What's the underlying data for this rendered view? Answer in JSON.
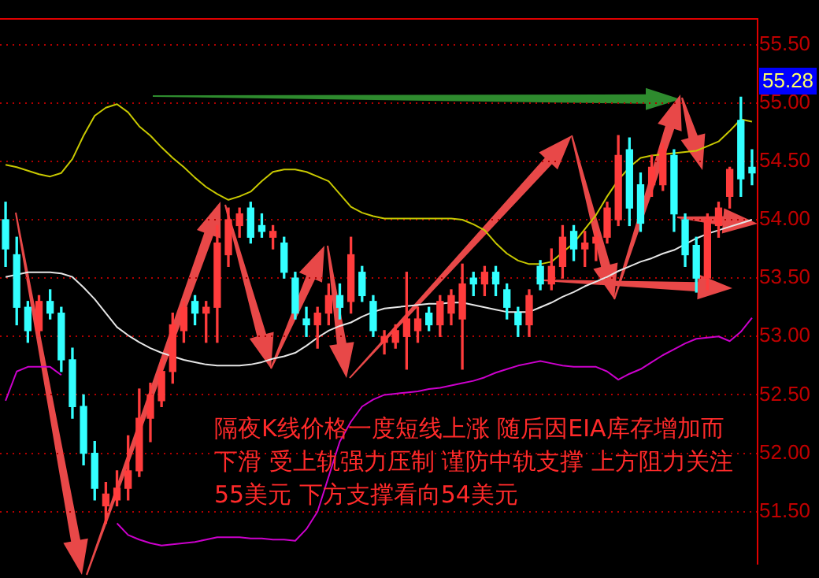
{
  "chart_data": {
    "type": "candlestick",
    "annotations": [
      "55.28",
      "隔夜K线价格一度短线上涨 随后因EIA库存增加而下滑 受上轨强力压制 谨防中轨支撑 上方阻力关注55美元 下方支撑看向54美元"
    ],
    "categories": [
      null,
      null,
      null,
      null,
      null,
      null,
      null,
      null,
      null,
      null,
      null,
      null,
      null,
      null,
      null,
      null,
      null,
      null,
      null,
      null,
      null,
      null,
      null,
      null,
      null,
      null,
      null,
      null,
      null,
      null,
      null,
      null,
      null,
      null,
      null,
      null,
      null,
      null,
      null,
      null,
      null,
      null,
      null,
      null,
      null,
      null,
      null,
      null,
      null,
      null,
      null,
      null,
      null,
      null,
      null,
      null,
      null,
      null,
      null,
      null,
      null,
      null,
      null,
      null,
      null,
      null,
      null,
      null
    ],
    "ohlc": [
      [
        54.0,
        54.15,
        53.6,
        53.75
      ],
      [
        53.7,
        53.85,
        53.1,
        53.25
      ],
      [
        53.25,
        53.3,
        52.95,
        53.05
      ],
      [
        53.05,
        53.35,
        53.0,
        53.3
      ],
      [
        53.3,
        53.4,
        53.15,
        53.2
      ],
      [
        53.2,
        53.25,
        52.7,
        52.8
      ],
      [
        52.8,
        52.9,
        52.3,
        52.4
      ],
      [
        52.4,
        52.5,
        51.9,
        52.0
      ],
      [
        52.0,
        52.1,
        51.6,
        51.7
      ],
      [
        51.55,
        51.75,
        51.4,
        51.65
      ],
      [
        51.6,
        51.85,
        51.55,
        51.7
      ],
      [
        51.7,
        52.15,
        51.6,
        51.85
      ],
      [
        51.85,
        52.55,
        51.8,
        52.3
      ],
      [
        52.3,
        52.6,
        52.1,
        52.5
      ],
      [
        52.45,
        52.8,
        52.4,
        52.7
      ],
      [
        52.7,
        53.2,
        52.6,
        53.1
      ],
      [
        53.05,
        53.3,
        52.95,
        53.25
      ],
      [
        53.3,
        53.35,
        53.1,
        53.2
      ],
      [
        53.2,
        53.3,
        52.95,
        53.25
      ],
      [
        53.25,
        53.95,
        52.95,
        53.8
      ],
      [
        53.7,
        54.1,
        53.6,
        54.0
      ],
      [
        53.95,
        54.1,
        53.85,
        54.05
      ],
      [
        54.1,
        54.15,
        53.8,
        53.85
      ],
      [
        53.95,
        54.05,
        53.85,
        53.9
      ],
      [
        53.85,
        53.95,
        53.75,
        53.9
      ],
      [
        53.8,
        53.85,
        53.5,
        53.55
      ],
      [
        53.5,
        53.55,
        53.15,
        53.2
      ],
      [
        53.15,
        53.25,
        53.0,
        53.1
      ],
      [
        53.1,
        53.25,
        52.9,
        53.2
      ],
      [
        53.2,
        53.45,
        53.1,
        53.35
      ],
      [
        53.35,
        53.45,
        53.15,
        53.25
      ],
      [
        53.3,
        53.85,
        53.2,
        53.7
      ],
      [
        53.55,
        53.6,
        53.3,
        53.35
      ],
      [
        53.3,
        53.35,
        53.0,
        53.05
      ],
      [
        52.95,
        53.05,
        52.85,
        53.0
      ],
      [
        52.95,
        53.1,
        52.9,
        53.05
      ],
      [
        53.0,
        53.55,
        52.72,
        53.15
      ],
      [
        53.05,
        53.25,
        52.95,
        53.15
      ],
      [
        53.2,
        53.25,
        53.05,
        53.1
      ],
      [
        53.1,
        53.35,
        53.0,
        53.3
      ],
      [
        53.2,
        53.4,
        53.1,
        53.35
      ],
      [
        53.15,
        53.62,
        52.72,
        53.45
      ],
      [
        53.5,
        53.55,
        53.35,
        53.45
      ],
      [
        53.45,
        53.6,
        53.35,
        53.55
      ],
      [
        53.55,
        53.6,
        53.35,
        53.45
      ],
      [
        53.4,
        53.45,
        53.15,
        53.25
      ],
      [
        53.2,
        53.25,
        53.0,
        53.1
      ],
      [
        53.1,
        53.4,
        53.0,
        53.35
      ],
      [
        53.6,
        53.65,
        53.4,
        53.45
      ],
      [
        53.45,
        53.75,
        53.4,
        53.6
      ],
      [
        53.6,
        53.95,
        53.5,
        53.85
      ],
      [
        53.9,
        53.95,
        53.65,
        53.75
      ],
      [
        53.75,
        53.9,
        53.6,
        53.8
      ],
      [
        53.8,
        53.9,
        53.65,
        53.85
      ],
      [
        53.85,
        54.15,
        53.8,
        54.1
      ],
      [
        54.0,
        54.72,
        53.95,
        54.55
      ],
      [
        54.6,
        54.7,
        53.95,
        54.1
      ],
      [
        54.3,
        54.4,
        53.9,
        53.97
      ],
      [
        54.3,
        54.55,
        54.2,
        54.45
      ],
      [
        54.3,
        54.65,
        54.25,
        54.6
      ],
      [
        54.55,
        54.6,
        53.9,
        54.05
      ],
      [
        54.0,
        54.05,
        53.6,
        53.7
      ],
      [
        53.78,
        53.85,
        53.38,
        53.5
      ],
      [
        53.5,
        54.05,
        53.4,
        54.0
      ],
      [
        53.95,
        54.15,
        53.85,
        54.1
      ],
      [
        54.2,
        54.45,
        54.1,
        54.43
      ],
      [
        54.85,
        55.05,
        54.2,
        54.35
      ],
      [
        54.45,
        54.6,
        54.3,
        54.4
      ]
    ],
    "series": [
      {
        "type": "line",
        "color": "#c8c800",
        "values": [
          54.47,
          54.45,
          54.42,
          54.39,
          54.37,
          54.4,
          54.52,
          54.72,
          54.89,
          54.96,
          54.99,
          54.92,
          54.8,
          54.72,
          54.62,
          54.53,
          54.45,
          54.36,
          54.28,
          54.22,
          54.17,
          54.2,
          54.24,
          54.33,
          54.41,
          54.43,
          54.43,
          54.41,
          54.37,
          54.33,
          54.22,
          54.11,
          54.06,
          54.03,
          54.01,
          54.01,
          54.01,
          54.01,
          54.01,
          54.01,
          54.01,
          54.0,
          53.96,
          53.91,
          53.8,
          53.71,
          53.65,
          53.62,
          53.62,
          53.64,
          53.72,
          53.8,
          53.92,
          54.04,
          54.2,
          54.34,
          54.45,
          54.53,
          54.55,
          54.56,
          54.57,
          54.58,
          54.59,
          54.63,
          54.67,
          54.76,
          54.86,
          54.84
        ]
      },
      {
        "type": "line",
        "color": "#e6e6e6",
        "values": [
          53.51,
          53.53,
          53.55,
          53.55,
          53.55,
          53.54,
          53.51,
          53.42,
          53.32,
          53.2,
          53.08,
          53.01,
          52.95,
          52.9,
          52.86,
          52.83,
          52.8,
          52.78,
          52.76,
          52.75,
          52.75,
          52.75,
          52.76,
          52.78,
          52.81,
          52.83,
          52.86,
          52.92,
          52.99,
          53.05,
          53.09,
          53.12,
          53.17,
          53.21,
          53.24,
          53.25,
          53.26,
          53.27,
          53.28,
          53.28,
          53.29,
          53.29,
          53.27,
          53.25,
          53.23,
          53.21,
          53.21,
          53.21,
          53.25,
          53.29,
          53.34,
          53.38,
          53.43,
          53.47,
          53.51,
          53.56,
          53.6,
          53.64,
          53.67,
          53.71,
          53.74,
          53.79,
          53.84,
          53.88,
          53.91,
          53.94,
          53.97,
          54.0
        ]
      },
      {
        "type": "line",
        "color": "#cc00cc",
        "values": [
          52.45,
          52.7,
          52.74,
          52.74,
          52.74,
          52.67,
          null,
          null,
          null,
          null,
          51.4,
          51.3,
          51.26,
          51.23,
          51.21,
          51.22,
          51.23,
          51.24,
          51.26,
          51.28,
          51.28,
          51.28,
          51.27,
          51.27,
          51.26,
          51.26,
          51.25,
          51.35,
          51.5,
          51.8,
          52.1,
          52.27,
          52.4,
          52.46,
          52.5,
          52.51,
          52.52,
          52.53,
          52.55,
          52.56,
          52.58,
          52.6,
          52.62,
          52.65,
          52.69,
          52.72,
          52.75,
          52.77,
          52.79,
          52.77,
          52.75,
          52.74,
          52.74,
          52.74,
          52.7,
          52.63,
          52.68,
          52.72,
          52.78,
          52.84,
          52.89,
          52.94,
          52.98,
          52.99,
          53.0,
          52.96,
          53.04,
          53.16
        ]
      }
    ],
    "ylim": [
      51.05,
      55.72
    ],
    "yticks": [
      {
        "value": 51.5,
        "label": "51.50"
      },
      {
        "value": 52,
        "label": "52.00"
      },
      {
        "value": 52.5,
        "label": "52.50"
      },
      {
        "value": 53,
        "label": "53.00"
      },
      {
        "value": 53.5,
        "label": "53.50"
      },
      {
        "value": 54,
        "label": "54.00"
      },
      {
        "value": 54.5,
        "label": "54.50"
      },
      {
        "value": 55,
        "label": "55.00"
      },
      {
        "value": 55.5,
        "label": "55.50"
      }
    ],
    "grid": "y",
    "legend": false,
    "tick_labels": "y"
  }
}
